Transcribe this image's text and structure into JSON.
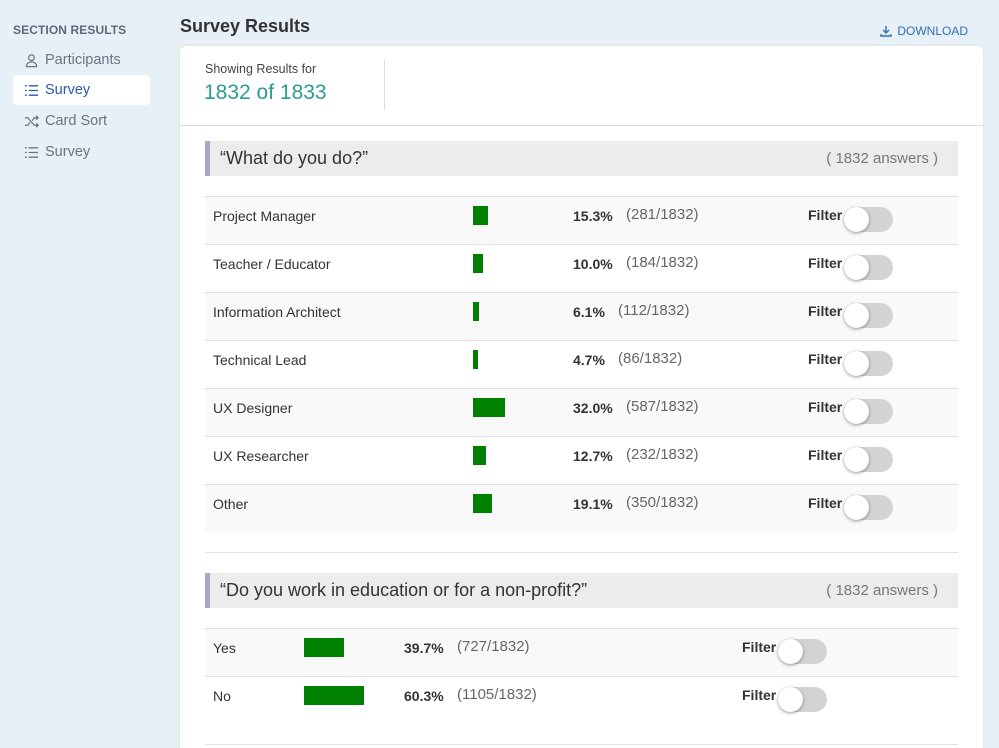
{
  "sidebar": {
    "heading": "SECTION RESULTS",
    "items": [
      {
        "label": "Participants",
        "icon": "user-icon",
        "active": false
      },
      {
        "label": "Survey",
        "icon": "list-icon",
        "active": true
      },
      {
        "label": "Card Sort",
        "icon": "shuffle-icon",
        "active": false
      },
      {
        "label": "Survey",
        "icon": "list-icon",
        "active": false
      }
    ]
  },
  "header": {
    "title": "Survey Results",
    "download_label": "DOWNLOAD"
  },
  "summary": {
    "showing_label": "Showing Results for",
    "count": "1832 of 1833"
  },
  "questions": [
    {
      "title": "“What do you do?”",
      "answers": "( 1832 answers )",
      "rows": [
        {
          "label": "Project Manager",
          "percent": "15.3%",
          "fraction": "(281/1832)",
          "value": 0.153,
          "filter": "Filter"
        },
        {
          "label": "Teacher / Educator",
          "percent": "10.0%",
          "fraction": "(184/1832)",
          "value": 0.1,
          "filter": "Filter"
        },
        {
          "label": "Information Architect",
          "percent": "6.1%",
          "fraction": "(112/1832)",
          "value": 0.061,
          "filter": "Filter"
        },
        {
          "label": "Technical Lead",
          "percent": "4.7%",
          "fraction": "(86/1832)",
          "value": 0.047,
          "filter": "Filter"
        },
        {
          "label": "UX Designer",
          "percent": "32.0%",
          "fraction": "(587/1832)",
          "value": 0.32,
          "filter": "Filter"
        },
        {
          "label": "UX Researcher",
          "percent": "12.7%",
          "fraction": "(232/1832)",
          "value": 0.127,
          "filter": "Filter"
        },
        {
          "label": "Other",
          "percent": "19.1%",
          "fraction": "(350/1832)",
          "value": 0.191,
          "filter": "Filter"
        }
      ]
    },
    {
      "title": "“Do you work in education or for a non-profit?”",
      "answers": "( 1832 answers )",
      "rows": [
        {
          "label": "Yes",
          "percent": "39.7%",
          "fraction": "(727/1832)",
          "value": 0.397,
          "filter": "Filter"
        },
        {
          "label": "No",
          "percent": "60.3%",
          "fraction": "(1105/1832)",
          "value": 0.603,
          "filter": "Filter"
        }
      ]
    }
  ],
  "colors": {
    "bar": "#008000",
    "accent": "#2a9d8f",
    "active_nav": "#2b5aa8"
  }
}
